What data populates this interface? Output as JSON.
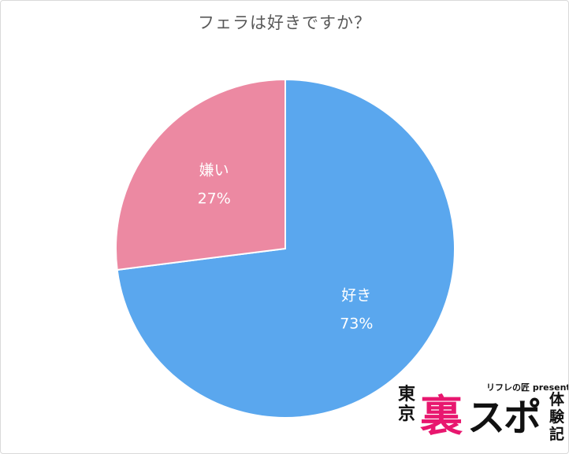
{
  "chart_data": {
    "type": "pie",
    "title": "フェラは好きですか？",
    "slices": [
      {
        "label": "好き",
        "value": 73,
        "value_label": "73%",
        "color": "#5aa7ee"
      },
      {
        "label": "嫌い",
        "value": 27,
        "value_label": "27%",
        "color": "#ec89a2"
      }
    ],
    "start_angle": "12 o'clock",
    "direction": "clockwise"
  },
  "logo": {
    "subtitle": "リフレの匠 presents",
    "tokyo": "東京",
    "ura": "裏",
    "supo": "スポ",
    "taiken": "体験記"
  }
}
